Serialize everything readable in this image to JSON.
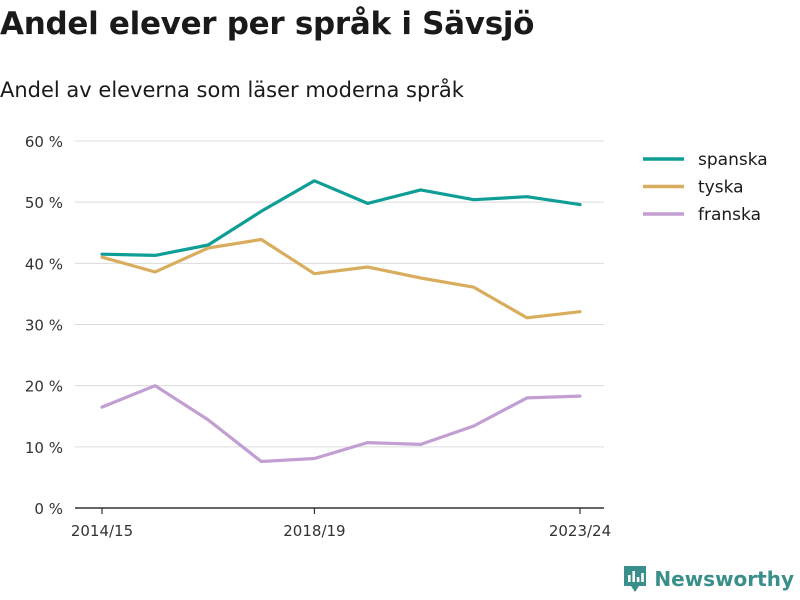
{
  "title": "Andel elever per språk i Sävsjö",
  "subtitle": "Andel av eleverna som läser moderna språk",
  "brand": {
    "name": "Newsworthy",
    "color": "#3a8f8a"
  },
  "chart_data": {
    "type": "line",
    "x": [
      "2014/15",
      "2015/16",
      "2016/17",
      "2017/18",
      "2018/19",
      "2019/20",
      "2020/21",
      "2021/22",
      "2022/23",
      "2023/24"
    ],
    "x_tick_labels": [
      "2014/15",
      "2018/19",
      "2023/24"
    ],
    "y_ticks": [
      0,
      10,
      20,
      30,
      40,
      50,
      60
    ],
    "y_tick_suffix": " %",
    "ylim": [
      0,
      60
    ],
    "grid": true,
    "legend_position": "top-right",
    "series": [
      {
        "name": "spanska",
        "color": "#0f9e95",
        "values": [
          41.5,
          41.3,
          43.0,
          48.5,
          53.5,
          49.8,
          52.0,
          50.4,
          50.9,
          49.6
        ]
      },
      {
        "name": "tyska",
        "color": "#d9ad5e",
        "values": [
          41.0,
          38.6,
          42.5,
          43.9,
          38.3,
          39.4,
          37.6,
          36.1,
          31.1,
          32.1
        ]
      },
      {
        "name": "franska",
        "color": "#c29ed2",
        "values": [
          16.5,
          20.0,
          14.4,
          7.6,
          8.1,
          10.7,
          10.4,
          13.4,
          18.0,
          18.3
        ]
      }
    ]
  }
}
